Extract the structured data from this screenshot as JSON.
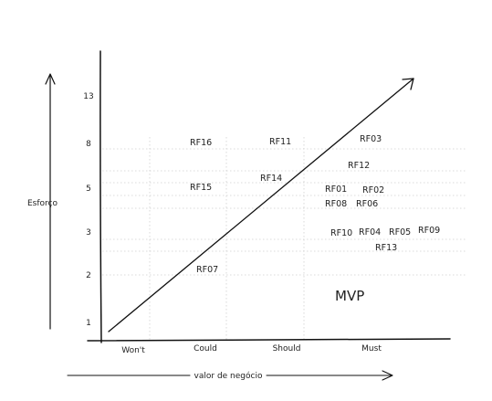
{
  "y_axis": {
    "label": "Esforço",
    "ticks": [
      "1",
      "2",
      "3",
      "5",
      "8",
      "13"
    ]
  },
  "x_axis": {
    "label": "valor de negócio",
    "categories": [
      "Won't",
      "Could",
      "Should",
      "Must"
    ]
  },
  "zone_label": "MVP",
  "requirements": [
    {
      "label": "RF16"
    },
    {
      "label": "RF11"
    },
    {
      "label": "RF03"
    },
    {
      "label": "RF12"
    },
    {
      "label": "RF14"
    },
    {
      "label": "RF15"
    },
    {
      "label": "RF01"
    },
    {
      "label": "RF02"
    },
    {
      "label": "RF08"
    },
    {
      "label": "RF06"
    },
    {
      "label": "RF10"
    },
    {
      "label": "RF04"
    },
    {
      "label": "RF05"
    },
    {
      "label": "RF09"
    },
    {
      "label": "RF13"
    },
    {
      "label": "RF07"
    }
  ],
  "colors": {
    "ink": "#111111",
    "grid": "#cfcfcf"
  }
}
